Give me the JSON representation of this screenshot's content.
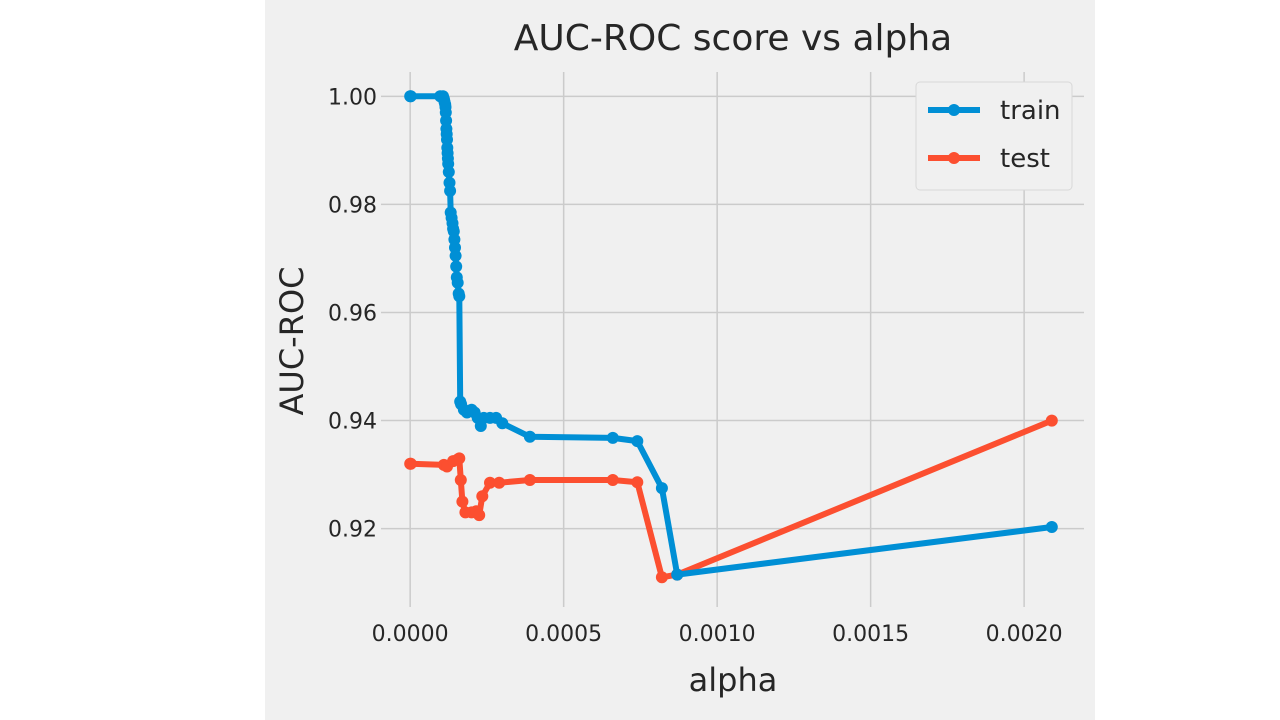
{
  "chart_data": {
    "type": "line",
    "title": "AUC-ROC score vs alpha",
    "xlabel": "alpha",
    "ylabel": "AUC-ROC",
    "xlim": [
      -9.5e-05,
      0.002195
    ],
    "ylim": [
      0.9055,
      1.0045
    ],
    "xticks": [
      0.0,
      0.0005,
      0.001,
      0.0015,
      0.002
    ],
    "xtick_labels": [
      "0.0000",
      "0.0005",
      "0.0010",
      "0.0015",
      "0.0020"
    ],
    "yticks": [
      0.92,
      0.94,
      0.96,
      0.98,
      1.0
    ],
    "ytick_labels": [
      "0.92",
      "0.94",
      "0.96",
      "0.98",
      "1.00"
    ],
    "grid": true,
    "legend_position": "upper right",
    "background": "#f0f0f0",
    "series": [
      {
        "name": "train",
        "color": "#008fd5",
        "x": [
          0.0,
          2e-06,
          9.8e-05,
          0.000107,
          0.00011,
          0.000112,
          0.000114,
          0.000115,
          0.000116,
          0.000117,
          0.000118,
          0.000119,
          0.00012,
          0.000121,
          0.000122,
          0.000123,
          0.000124,
          0.000126,
          0.000128,
          0.00013,
          0.000132,
          0.000135,
          0.000138,
          0.00014,
          0.000142,
          0.000144,
          0.000146,
          0.000148,
          0.00015,
          0.000152,
          0.000155,
          0.000158,
          0.00016,
          0.000163,
          0.000166,
          0.000175,
          0.000185,
          0.0002,
          0.00021,
          0.00022,
          0.00023,
          0.00024,
          0.00026,
          0.00028,
          0.0003,
          0.00039,
          0.00066,
          0.00074,
          0.00082,
          0.00087,
          0.00209
        ],
        "y": [
          1.0,
          1.0,
          1.0,
          1.0,
          0.9995,
          0.999,
          0.9985,
          0.998,
          0.997,
          0.9955,
          0.994,
          0.993,
          0.992,
          0.9905,
          0.9895,
          0.9885,
          0.9875,
          0.986,
          0.984,
          0.9825,
          0.9785,
          0.9775,
          0.9765,
          0.9755,
          0.975,
          0.9735,
          0.972,
          0.9705,
          0.9685,
          0.9665,
          0.9655,
          0.9635,
          0.963,
          0.9435,
          0.943,
          0.942,
          0.9415,
          0.942,
          0.9415,
          0.9405,
          0.939,
          0.9405,
          0.9405,
          0.9405,
          0.9395,
          0.937,
          0.9368,
          0.9362,
          0.9275,
          0.9115,
          0.9203
        ]
      },
      {
        "name": "test",
        "color": "#fc4f30",
        "x": [
          0.0,
          2e-06,
          0.00011,
          0.00012,
          0.00014,
          0.000155,
          0.00016,
          0.000165,
          0.00017,
          0.00018,
          0.0002,
          0.000215,
          0.000225,
          0.000235,
          0.00026,
          0.00029,
          0.00039,
          0.00066,
          0.00074,
          0.00082,
          0.00087,
          0.00209
        ],
        "y": [
          0.932,
          0.932,
          0.9318,
          0.9315,
          0.9325,
          0.9328,
          0.933,
          0.929,
          0.925,
          0.923,
          0.923,
          0.9232,
          0.9225,
          0.926,
          0.9285,
          0.9285,
          0.929,
          0.929,
          0.9286,
          0.911,
          0.9115,
          0.94
        ]
      }
    ]
  }
}
